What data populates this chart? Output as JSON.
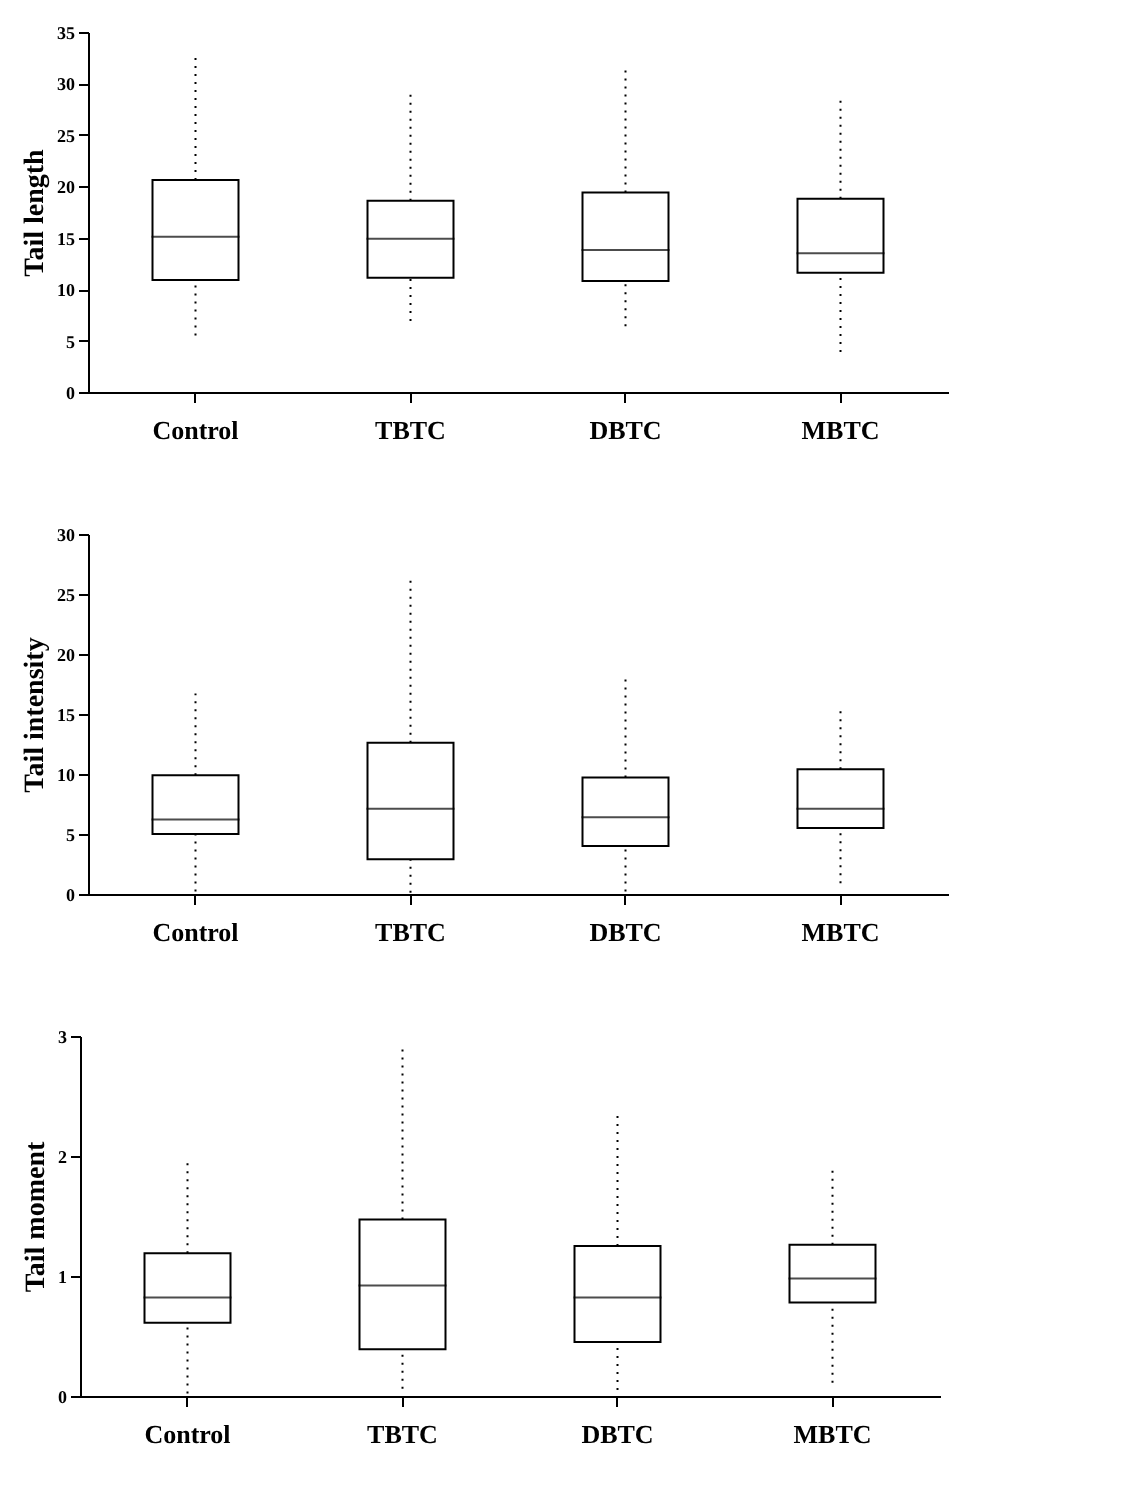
{
  "chart_data": [
    {
      "type": "box",
      "categories": [
        "Control",
        "TBTC",
        "DBTC",
        "MBTC"
      ],
      "ylabel": "Tail length",
      "ylim": [
        0,
        35
      ],
      "yticks": [
        0,
        5,
        10,
        15,
        20,
        25,
        30,
        35
      ],
      "boxes": [
        {
          "low": 5.5,
          "q1": 10.9,
          "median": 15.1,
          "q3": 20.6,
          "high": 32.6
        },
        {
          "low": 6.9,
          "q1": 11.1,
          "median": 14.9,
          "q3": 18.6,
          "high": 29.1
        },
        {
          "low": 6.4,
          "q1": 10.8,
          "median": 13.8,
          "q3": 19.4,
          "high": 31.3
        },
        {
          "low": 3.9,
          "q1": 11.6,
          "median": 13.5,
          "q3": 18.8,
          "high": 28.4
        }
      ]
    },
    {
      "type": "box",
      "categories": [
        "Control",
        "TBTC",
        "DBTC",
        "MBTC"
      ],
      "ylabel": "Tail intensity",
      "ylim": [
        0,
        30
      ],
      "yticks": [
        0,
        5,
        10,
        15,
        20,
        25,
        30
      ],
      "boxes": [
        {
          "low": 0.2,
          "q1": 5.0,
          "median": 6.2,
          "q3": 9.9,
          "high": 16.7
        },
        {
          "low": 0.1,
          "q1": 2.9,
          "median": 7.1,
          "q3": 12.6,
          "high": 26.5
        },
        {
          "low": 0.2,
          "q1": 4.0,
          "median": 6.4,
          "q3": 9.7,
          "high": 18.0
        },
        {
          "low": 0.9,
          "q1": 5.5,
          "median": 7.1,
          "q3": 10.4,
          "high": 15.7
        }
      ]
    },
    {
      "type": "box",
      "categories": [
        "Control",
        "TBTC",
        "DBTC",
        "MBTC"
      ],
      "ylabel": "Tail moment",
      "ylim": [
        0,
        3
      ],
      "yticks": [
        0,
        1,
        2,
        3
      ],
      "boxes": [
        {
          "low": 0.02,
          "q1": 0.61,
          "median": 0.82,
          "q3": 1.19,
          "high": 1.98
        },
        {
          "low": 0.06,
          "q1": 0.39,
          "median": 0.92,
          "q3": 1.47,
          "high": 2.91
        },
        {
          "low": 0.05,
          "q1": 0.45,
          "median": 0.82,
          "q3": 1.25,
          "high": 2.37
        },
        {
          "low": 0.11,
          "q1": 0.78,
          "median": 0.98,
          "q3": 1.26,
          "high": 1.92
        }
      ]
    }
  ]
}
